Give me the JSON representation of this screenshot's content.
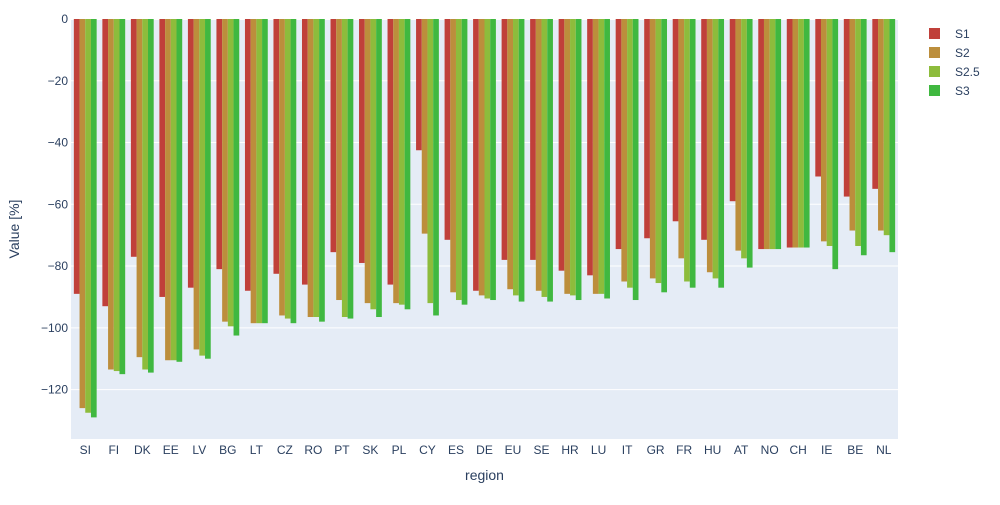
{
  "chart_data": {
    "type": "bar",
    "xlabel": "region",
    "ylabel": "Value [%]",
    "ylim": [
      -136,
      0
    ],
    "y_ticks": [
      0,
      -20,
      -40,
      -60,
      -80,
      -100,
      -120
    ],
    "y_tick_labels": [
      "0",
      "−20",
      "−40",
      "−60",
      "−80",
      "−100",
      "−120"
    ],
    "grid": true,
    "legend_position": "top-right",
    "categories": [
      "SI",
      "FI",
      "DK",
      "EE",
      "LV",
      "BG",
      "LT",
      "CZ",
      "RO",
      "PT",
      "SK",
      "PL",
      "CY",
      "ES",
      "DE",
      "EU",
      "SE",
      "HR",
      "LU",
      "IT",
      "GR",
      "FR",
      "HU",
      "AT",
      "NO",
      "CH",
      "IE",
      "BE",
      "NL"
    ],
    "series": [
      {
        "name": "S1",
        "color": "#c0403a",
        "values": [
          -89,
          -93,
          -77,
          -90,
          -87,
          -81,
          -88,
          -82.5,
          -86,
          -75.5,
          -79,
          -86,
          -42.5,
          -71.5,
          -88,
          -78,
          -78,
          -81.5,
          -83,
          -74.5,
          -71,
          -65.5,
          -71.5,
          -59,
          -74.5,
          -74,
          -51,
          -57.5,
          -55
        ]
      },
      {
        "name": "S2",
        "color": "#bc8e3c",
        "values": [
          -126,
          -113.5,
          -109.5,
          -110.5,
          -107,
          -98,
          -98.5,
          -96,
          -96.5,
          -91,
          -92,
          -92,
          -69.5,
          -88.5,
          -89.5,
          -87.5,
          -88,
          -89,
          -89,
          -85,
          -84,
          -77.5,
          -82,
          -75,
          -74.5,
          -74,
          -72,
          -68.5,
          -68.5
        ]
      },
      {
        "name": "S2.5",
        "color": "#8dbc3c",
        "values": [
          -127.5,
          -114,
          -113.5,
          -110.5,
          -109,
          -99.5,
          -98.5,
          -97,
          -96.5,
          -96.5,
          -94,
          -92.5,
          -92,
          -91,
          -90.5,
          -89.5,
          -90,
          -89.5,
          -89,
          -87,
          -85.5,
          -85,
          -84,
          -77.5,
          -74.5,
          -74,
          -73.5,
          -73.5,
          -70
        ]
      },
      {
        "name": "S3",
        "color": "#40b840",
        "values": [
          -129,
          -115,
          -114.5,
          -111,
          -110,
          -102.5,
          -98.5,
          -98.5,
          -98,
          -97,
          -96.5,
          -94,
          -96,
          -92.5,
          -91,
          -91.5,
          -91.5,
          -91,
          -90.5,
          -91,
          -88.5,
          -87,
          -87,
          -80.5,
          -74.5,
          -74,
          -81,
          -76.5,
          -75.5
        ]
      }
    ]
  }
}
